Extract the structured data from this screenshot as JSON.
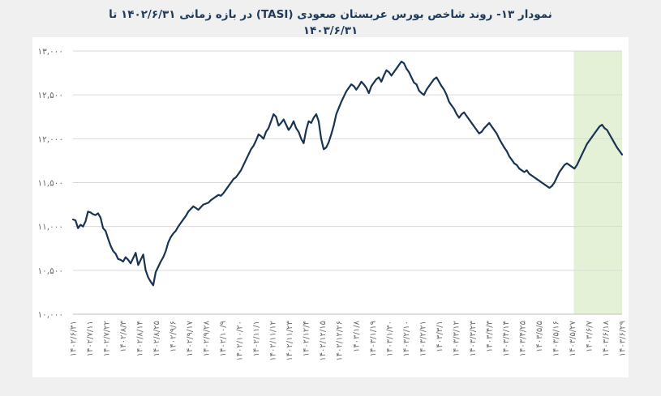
{
  "chart_data": {
    "type": "line",
    "title_line1": "نمودار ۱۳- روند شاخص بورس عربستان صعودی (TASI) در بازه زمانی ۱۴۰۲/۶/۳۱ تا",
    "title_line2": "۱۴۰۳/۶/۳۱",
    "y_ticks": [
      "۱۰,۰۰۰",
      "۱۰,۵۰۰",
      "۱۱,۰۰۰",
      "۱۱,۵۰۰",
      "۱۲,۰۰۰",
      "۱۲,۵۰۰",
      "۱۳,۰۰۰"
    ],
    "ylim": [
      10000,
      13000
    ],
    "x_ticks": [
      "۱۴۰۲/۶/۳۱",
      "۱۴۰۲/۷/۱۱",
      "۱۴۰۲/۷/۲۲",
      "۱۴۰۲/۸/۳",
      "۱۴۰۲/۸/۱۴",
      "۱۴۰۲/۸/۲۵",
      "۱۴۰۲/۹/۶",
      "۱۴۰۲/۹/۱۷",
      "۱۴۰۲/۹/۲۸",
      "۱۴۰۲/۱۰/۹",
      "۱۴۰۲/۱۰/۲۰",
      "۱۴۰۲/۱۱/۱",
      "۱۴۰۲/۱۱/۱۲",
      "۱۴۰۲/۱۱/۲۳",
      "۱۴۰۲/۱۲/۴",
      "۱۴۰۲/۱۲/۱۵",
      "۱۴۰۲/۱۲/۲۶",
      "۱۴۰۳/۱/۸",
      "۱۴۰۳/۱/۱۹",
      "۱۴۰۳/۱/۳۰",
      "۱۴۰۳/۲/۱۰",
      "۱۴۰۳/۲/۲۱",
      "۱۴۰۳/۳/۱",
      "۱۴۰۳/۳/۱۲",
      "۱۴۰۳/۳/۲۳",
      "۱۴۰۳/۴/۳",
      "۱۴۰۳/۴/۱۴",
      "۱۴۰۳/۴/۲۵",
      "۱۴۰۳/۵/۵",
      "۱۴۰۳/۵/۱۶",
      "۱۴۰۳/۵/۲۷",
      "۱۴۰۳/۶/۷",
      "۱۴۰۳/۶/۱۸",
      "۱۴۰۳/۶/۲۹"
    ],
    "highlight_range_index": [
      30,
      34
    ],
    "highlight_color": "#e4f1d6",
    "line_color": "#1a3352",
    "grid": true,
    "values": [
      11080,
      11070,
      10980,
      11020,
      11000,
      11060,
      11170,
      11160,
      11140,
      11130,
      11150,
      11100,
      10980,
      10950,
      10860,
      10780,
      10720,
      10690,
      10630,
      10620,
      10600,
      10650,
      10620,
      10580,
      10640,
      10700,
      10560,
      10620,
      10680,
      10500,
      10420,
      10370,
      10330,
      10480,
      10540,
      10600,
      10650,
      10720,
      10820,
      10880,
      10920,
      10950,
      11000,
      11040,
      11080,
      11120,
      11170,
      11200,
      11230,
      11210,
      11190,
      11220,
      11250,
      11260,
      11270,
      11300,
      11320,
      11340,
      11360,
      11350,
      11380,
      11420,
      11460,
      11500,
      11540,
      11560,
      11600,
      11640,
      11700,
      11760,
      11820,
      11880,
      11920,
      11980,
      12050,
      12030,
      12000,
      12080,
      12120,
      12200,
      12280,
      12250,
      12150,
      12180,
      12220,
      12160,
      12100,
      12140,
      12200,
      12120,
      12080,
      12000,
      11950,
      12100,
      12200,
      12180,
      12240,
      12280,
      12200,
      12000,
      11880,
      11900,
      11960,
      12050,
      12150,
      12280,
      12350,
      12420,
      12480,
      12540,
      12580,
      12620,
      12600,
      12560,
      12600,
      12650,
      12620,
      12580,
      12520,
      12600,
      12640,
      12680,
      12700,
      12650,
      12720,
      12780,
      12760,
      12720,
      12760,
      12800,
      12840,
      12880,
      12860,
      12800,
      12760,
      12700,
      12640,
      12620,
      12550,
      12520,
      12500,
      12560,
      12600,
      12640,
      12680,
      12700,
      12650,
      12600,
      12560,
      12500,
      12420,
      12380,
      12340,
      12280,
      12240,
      12280,
      12300,
      12260,
      12220,
      12180,
      12140,
      12100,
      12060,
      12080,
      12120,
      12150,
      12180,
      12140,
      12100,
      12060,
      12000,
      11950,
      11900,
      11860,
      11800,
      11760,
      11720,
      11700,
      11660,
      11640,
      11620,
      11640,
      11600,
      11580,
      11560,
      11540,
      11520,
      11500,
      11480,
      11460,
      11440,
      11460,
      11500,
      11560,
      11620,
      11660,
      11700,
      11720,
      11700,
      11680,
      11660,
      11700,
      11760,
      11820,
      11880,
      11940,
      11980,
      12020,
      12060,
      12100,
      12140,
      12160,
      12120,
      12100,
      12050,
      12000,
      11950,
      11900,
      11860,
      11820
    ]
  }
}
